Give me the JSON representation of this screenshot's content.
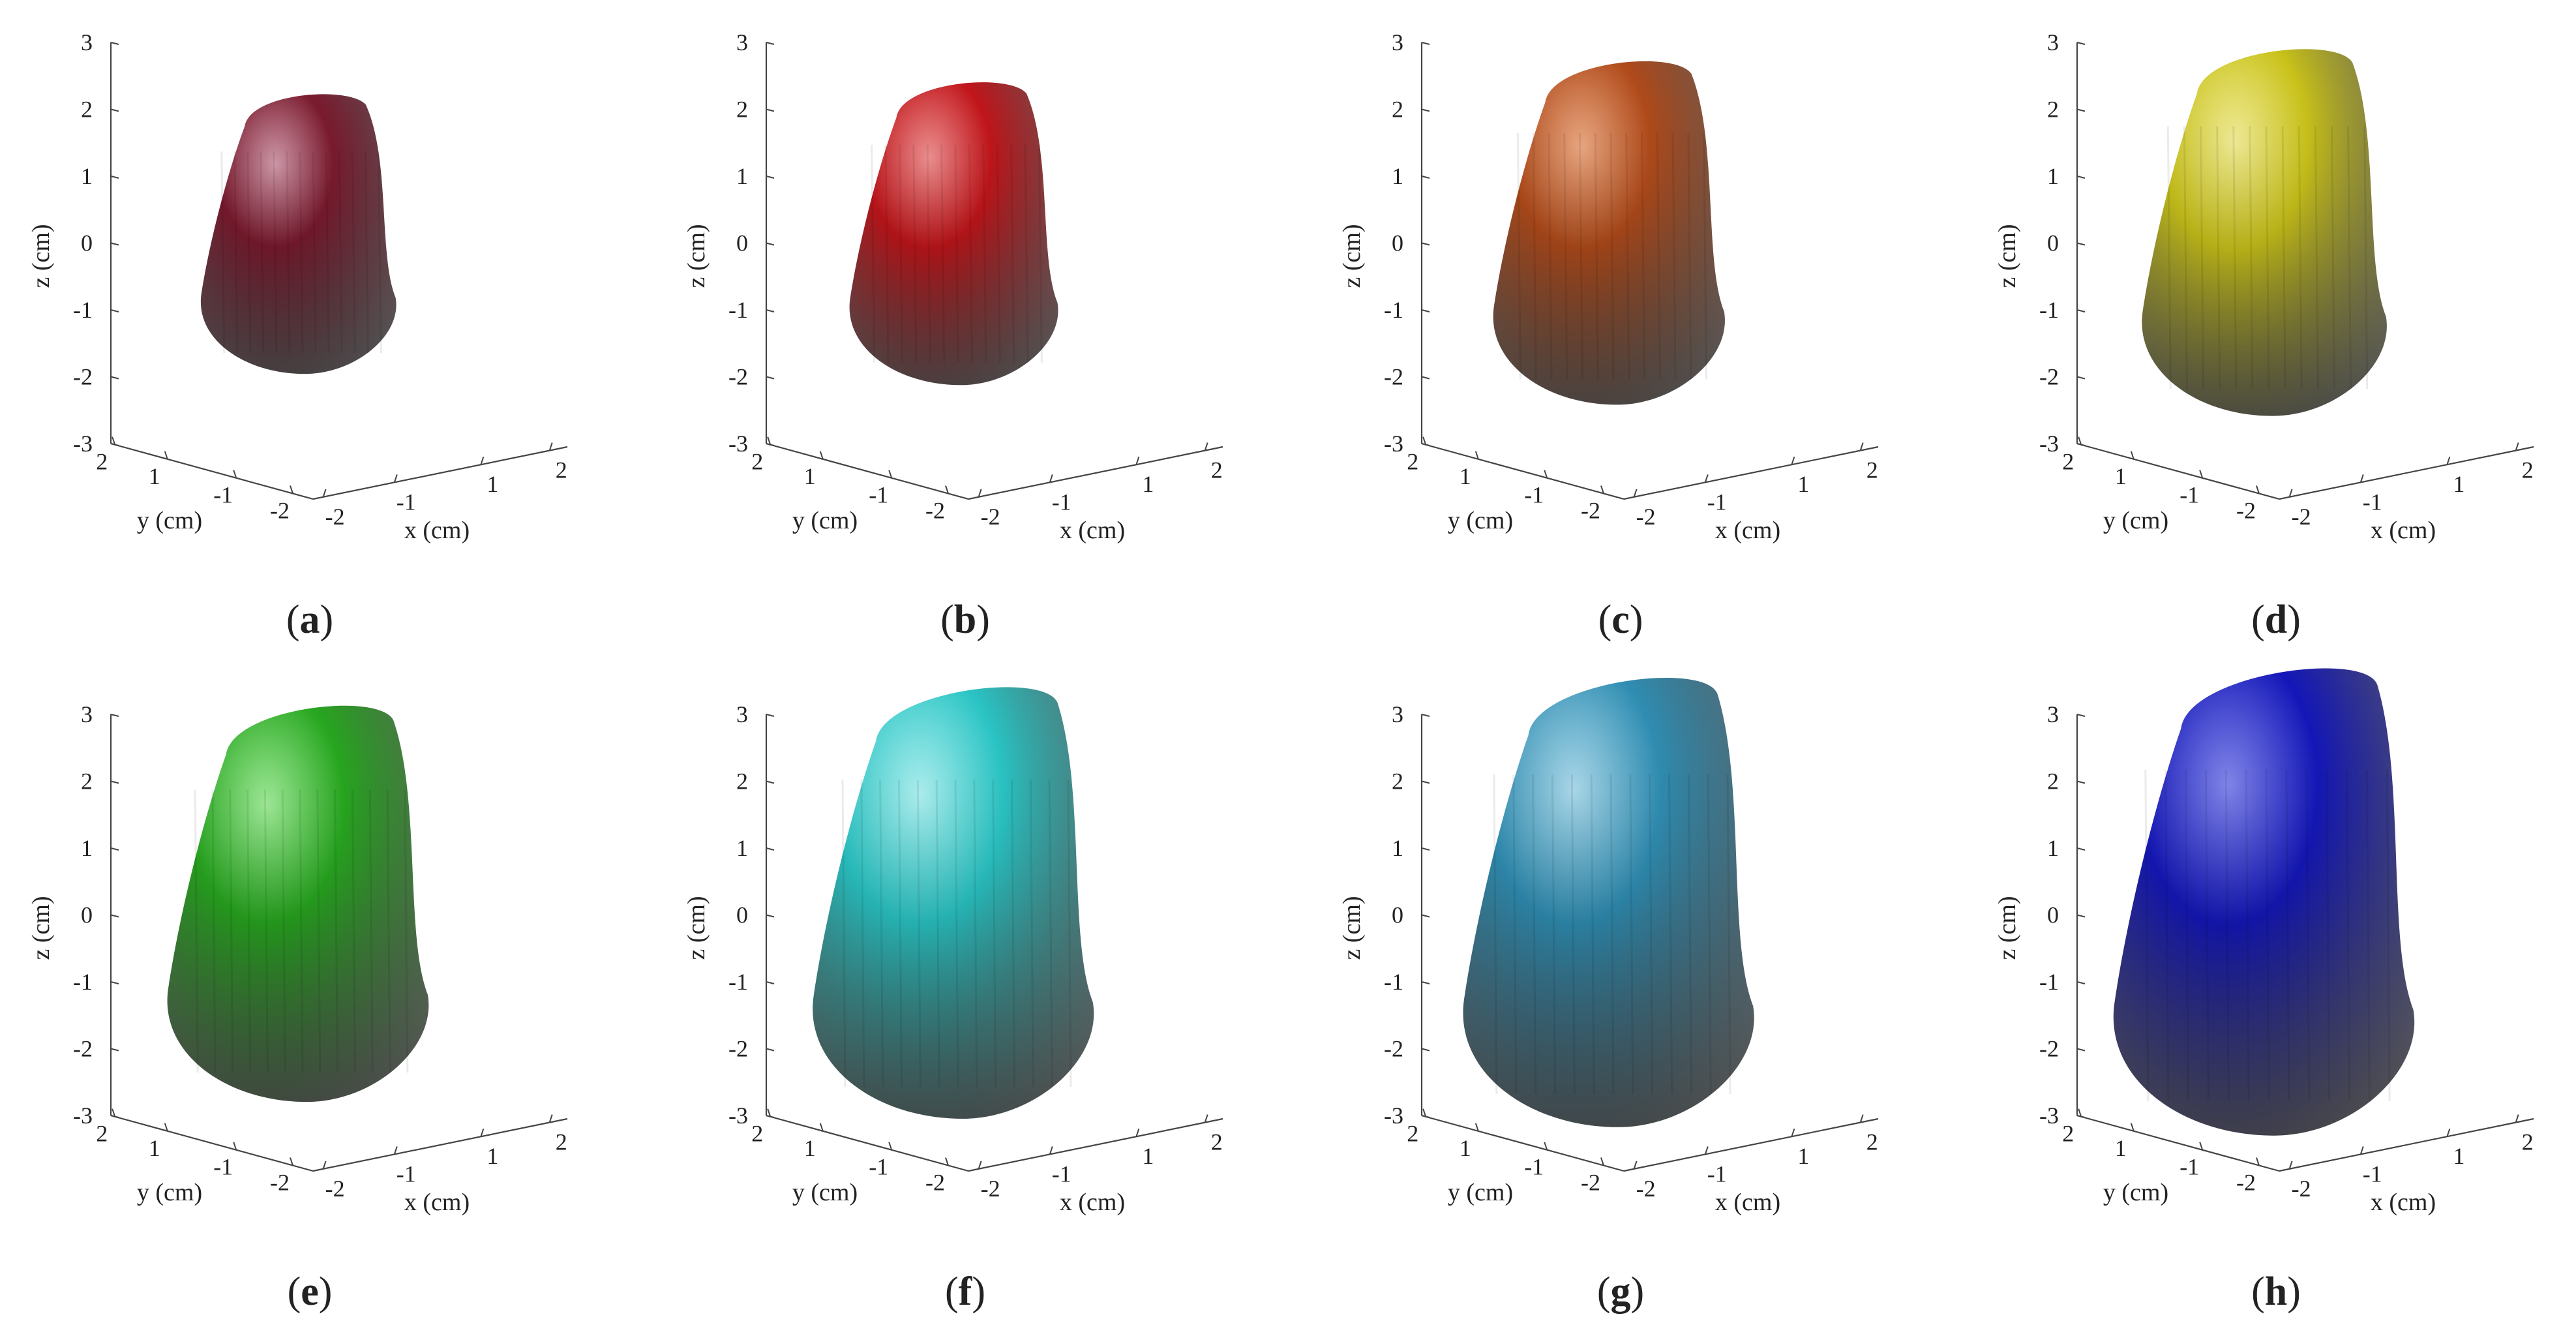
{
  "figure": {
    "panels": [
      {
        "id": "a",
        "caption": "a",
        "color": "#7a1a2e",
        "highlight": "#d6a3b3",
        "size": 0.34
      },
      {
        "id": "b",
        "caption": "b",
        "color": "#c0151a",
        "highlight": "#f29a9a",
        "size": 0.42
      },
      {
        "id": "c",
        "caption": "c",
        "color": "#b04a1a",
        "highlight": "#f0b08a",
        "size": 0.56
      },
      {
        "id": "d",
        "caption": "d",
        "color": "#c9c21a",
        "highlight": "#f5f0a0",
        "size": 0.64
      },
      {
        "id": "e",
        "caption": "e",
        "color": "#27a61f",
        "highlight": "#a8f0a0",
        "size": 0.74
      },
      {
        "id": "f",
        "caption": "f",
        "color": "#2ac4c4",
        "highlight": "#b8f4f4",
        "size": 0.86
      },
      {
        "id": "g",
        "caption": "g",
        "color": "#2f8db2",
        "highlight": "#b5e0f0",
        "size": 0.92
      },
      {
        "id": "h",
        "caption": "h",
        "color": "#1417b8",
        "highlight": "#8a8ff0",
        "size": 0.98
      }
    ],
    "axes": {
      "z_label": "z (cm)",
      "y_label": "y (cm)",
      "x_label": "x (cm)",
      "z_ticks": [
        "3",
        "2",
        "1",
        "0",
        "-1",
        "-2",
        "-3"
      ],
      "y_ticks": [
        "2",
        "1",
        "-1",
        "-2"
      ],
      "x_ticks": [
        "-2",
        "-1",
        "1",
        "2"
      ]
    }
  }
}
